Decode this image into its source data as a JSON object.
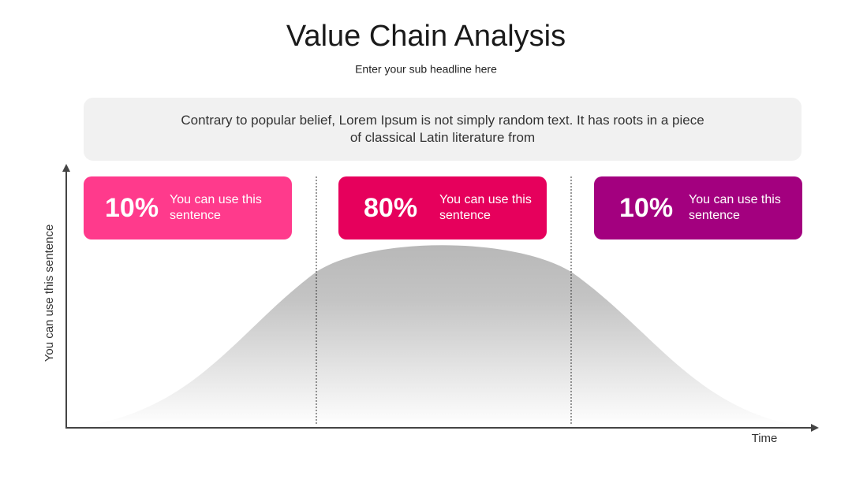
{
  "header": {
    "title": "Value Chain Analysis",
    "subtitle": "Enter your sub headline here"
  },
  "intro": "Contrary to popular belief, Lorem Ipsum is not simply random text. It has roots in a piece of classical Latin literature from",
  "cards": [
    {
      "percent": "10%",
      "text": "You can use this sentence"
    },
    {
      "percent": "80%",
      "text": "You can use this sentence"
    },
    {
      "percent": "10%",
      "text": "You can use this sentence"
    }
  ],
  "axes": {
    "y_label": "You can use this sentence",
    "x_label": "Time"
  }
}
